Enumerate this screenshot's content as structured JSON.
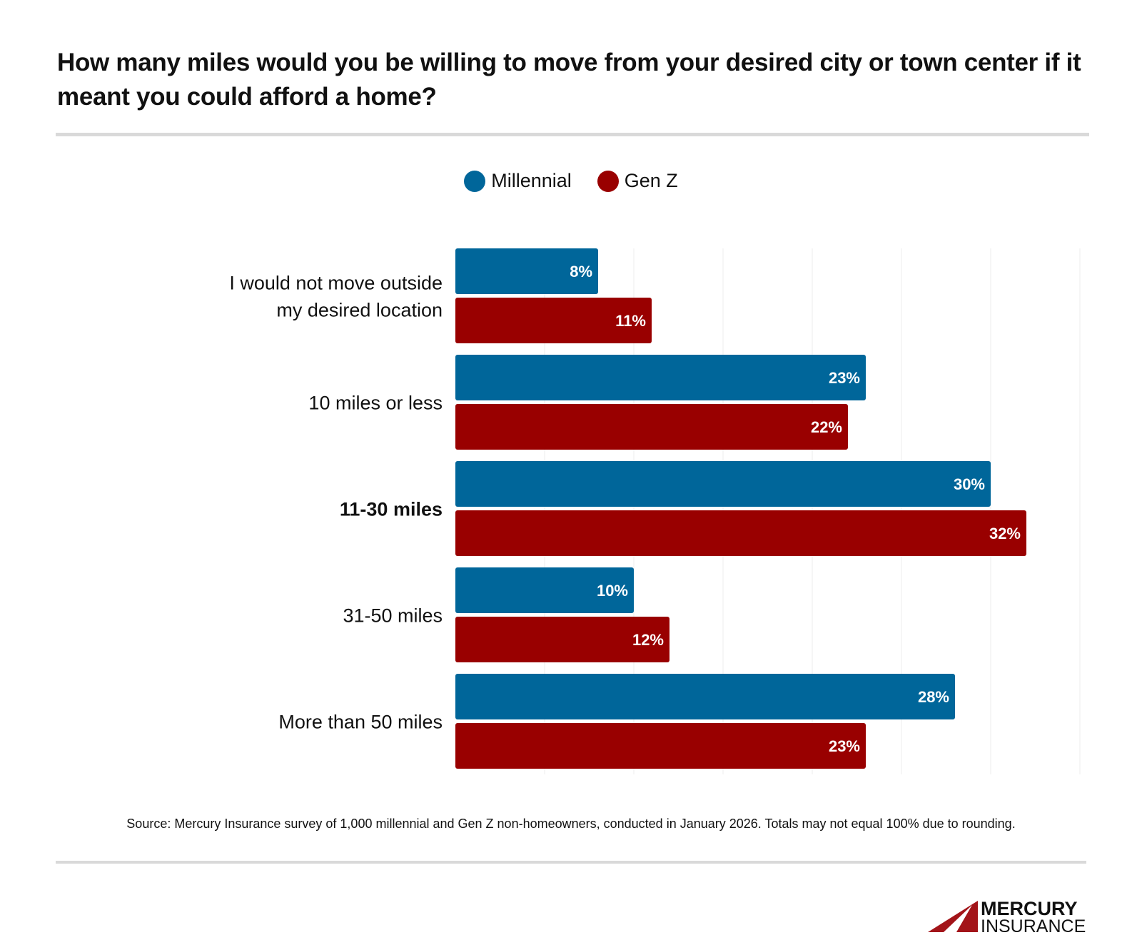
{
  "title": "How many miles would you be willing to move from your desired city or town center if it meant you could afford a home?",
  "source": "Source: Mercury Insurance survey of 1,000 millennial and Gen Z non-homeowners, conducted in January 2026. Totals may not equal 100% due to rounding.",
  "logo": "MERCURY INSURANCE",
  "chart_data": {
    "type": "bar",
    "orientation": "horizontal",
    "categories": [
      "I would not move outside my desired location",
      "10 miles or less",
      "11-30 miles",
      "31-50 miles",
      "More than 50 miles"
    ],
    "bold_category": "11-30 miles",
    "series": [
      {
        "name": "Millennial",
        "color": "#00669a",
        "values": [
          8,
          23,
          30,
          10,
          28
        ],
        "labels": [
          "8%",
          "23%",
          "30%",
          "10%",
          "28%"
        ]
      },
      {
        "name": "Gen Z",
        "color": "#990000",
        "values": [
          11,
          22,
          32,
          12,
          23
        ],
        "labels": [
          "11%",
          "22%",
          "32%",
          "12%",
          "23%"
        ]
      }
    ],
    "xlim": [
      0,
      35
    ],
    "grid": true,
    "legend": "top-center"
  }
}
